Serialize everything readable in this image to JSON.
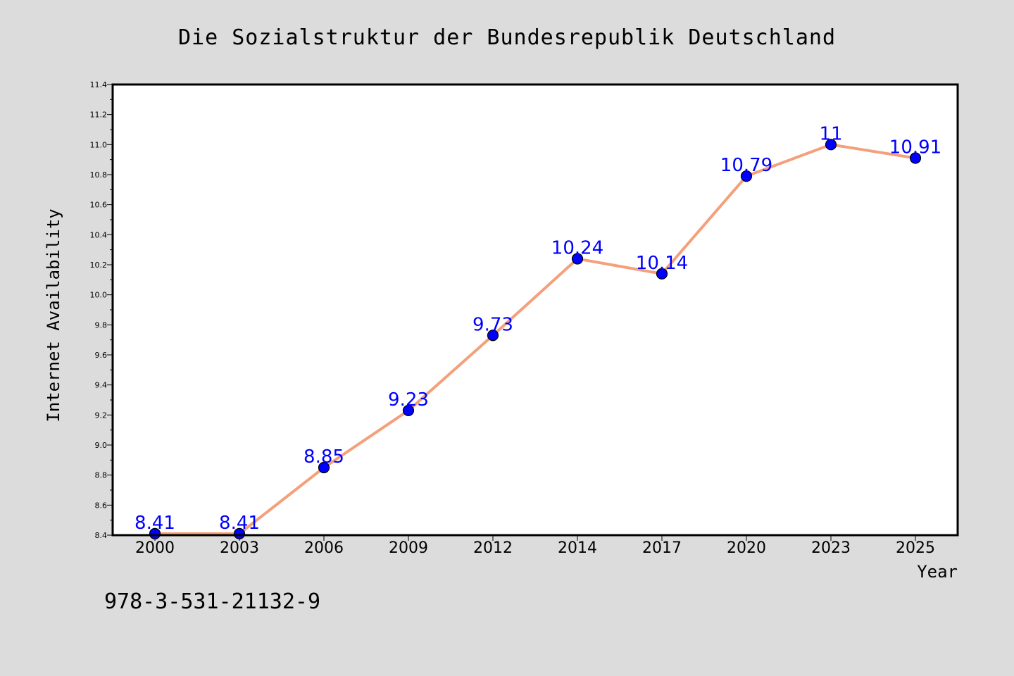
{
  "page": {
    "background": "#dcdcdc",
    "footer_text": "978-3-531-21132-9"
  },
  "chart_data": {
    "type": "line",
    "title": "Die Sozialstruktur der Bundesrepublik Deutschland",
    "xlabel": "Year",
    "ylabel": "Internet Availability",
    "categories": [
      "2000",
      "2003",
      "2006",
      "2009",
      "2012",
      "2014",
      "2017",
      "2020",
      "2023",
      "2025"
    ],
    "series": [
      {
        "values": [
          8.41,
          8.41,
          8.85,
          9.23,
          9.73,
          10.24,
          10.14,
          10.79,
          11,
          10.91
        ],
        "data_labels": [
          "8.41",
          "8.41",
          "8.85",
          "9.23",
          "9.73",
          "10.24",
          "10.14",
          "10.79",
          "11",
          "10.91"
        ],
        "line_color": "#f4a07a",
        "marker_color": "#0000ff"
      }
    ],
    "ylim": [
      8.4,
      11.4
    ],
    "yticks": [
      "8.4",
      "8.6",
      "8.8",
      "9.0",
      "9.2",
      "9.4",
      "9.6",
      "9.8",
      "10.0",
      "10.2",
      "10.4",
      "10.6",
      "10.8",
      "11.0",
      "11.2",
      "11.4"
    ],
    "grid": false,
    "plot_background": "#ffffff"
  }
}
